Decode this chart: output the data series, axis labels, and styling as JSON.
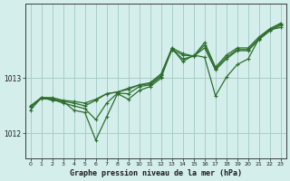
{
  "title": "Graphe pression niveau de la mer (hPa)",
  "background_color": "#d4eeec",
  "grid_color": "#a8ceca",
  "line_color": "#2d6e2d",
  "xlim": [
    -0.5,
    23.5
  ],
  "ylim": [
    1011.55,
    1014.35
  ],
  "yticks": [
    1012,
    1013
  ],
  "xticks": [
    0,
    1,
    2,
    3,
    4,
    5,
    6,
    7,
    8,
    9,
    10,
    11,
    12,
    13,
    14,
    15,
    16,
    17,
    18,
    19,
    20,
    21,
    22,
    23
  ],
  "series": [
    [
      1012.48,
      1012.65,
      1012.65,
      1012.6,
      1012.58,
      1012.55,
      1012.62,
      1012.72,
      1012.75,
      1012.82,
      1012.88,
      1012.92,
      1013.08,
      1013.55,
      1013.45,
      1013.4,
      1013.65,
      1013.2,
      1013.42,
      1013.55,
      1013.55,
      1013.75,
      1013.9,
      1014.0
    ],
    [
      1012.42,
      1012.65,
      1012.63,
      1012.58,
      1012.42,
      1012.38,
      1011.88,
      1012.3,
      1012.72,
      1012.62,
      1012.78,
      1012.85,
      1013.0,
      1013.55,
      1013.3,
      1013.42,
      1013.38,
      1012.68,
      1013.02,
      1013.25,
      1013.35,
      1013.72,
      1013.88,
      1013.92
    ],
    [
      1012.5,
      1012.65,
      1012.6,
      1012.58,
      1012.55,
      1012.5,
      1012.6,
      1012.72,
      1012.75,
      1012.8,
      1012.88,
      1012.9,
      1013.05,
      1013.52,
      1013.42,
      1013.4,
      1013.6,
      1013.18,
      1013.38,
      1013.52,
      1013.52,
      1013.72,
      1013.88,
      1013.98
    ],
    [
      1012.48,
      1012.63,
      1012.62,
      1012.55,
      1012.5,
      1012.45,
      1012.25,
      1012.55,
      1012.73,
      1012.72,
      1012.85,
      1012.88,
      1013.03,
      1013.52,
      1013.35,
      1013.4,
      1013.55,
      1013.15,
      1013.35,
      1013.5,
      1013.5,
      1013.7,
      1013.86,
      1013.96
    ]
  ]
}
